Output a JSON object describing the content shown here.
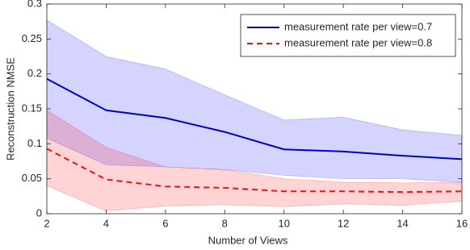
{
  "chart_data": {
    "type": "line",
    "x_label": "Number of Views",
    "y_label": "Reconstruction NMSE",
    "x": [
      2,
      4,
      6,
      8,
      10,
      12,
      14,
      16
    ],
    "series": [
      {
        "name": "measurement rate per view=0.7",
        "color": "#0000cc",
        "band_color": "#0000ff",
        "dash": false,
        "values": [
          0.193,
          0.148,
          0.137,
          0.117,
          0.092,
          0.089,
          0.083,
          0.078
        ],
        "upper": [
          0.277,
          0.225,
          0.207,
          0.17,
          0.134,
          0.138,
          0.12,
          0.112
        ],
        "lower": [
          0.108,
          0.07,
          0.067,
          0.063,
          0.055,
          0.05,
          0.05,
          0.045
        ]
      },
      {
        "name": "measurement rate per view=0.8",
        "color": "#e8131b",
        "band_color": "#ff0000",
        "dash": true,
        "values": [
          0.093,
          0.049,
          0.039,
          0.037,
          0.032,
          0.032,
          0.031,
          0.032
        ],
        "upper": [
          0.148,
          0.095,
          0.067,
          0.063,
          0.05,
          0.045,
          0.044,
          0.045
        ],
        "lower": [
          0.04,
          0.004,
          0.011,
          0.013,
          0.01,
          0.014,
          0.012,
          0.018
        ]
      }
    ],
    "xlim": [
      2,
      16
    ],
    "xticks": [
      2,
      4,
      6,
      8,
      10,
      12,
      14,
      16
    ],
    "ylim": [
      0,
      0.3
    ],
    "yticks": [
      0,
      0.05,
      0.1,
      0.15,
      0.2,
      0.25,
      0.3
    ],
    "legend": "upper right"
  }
}
